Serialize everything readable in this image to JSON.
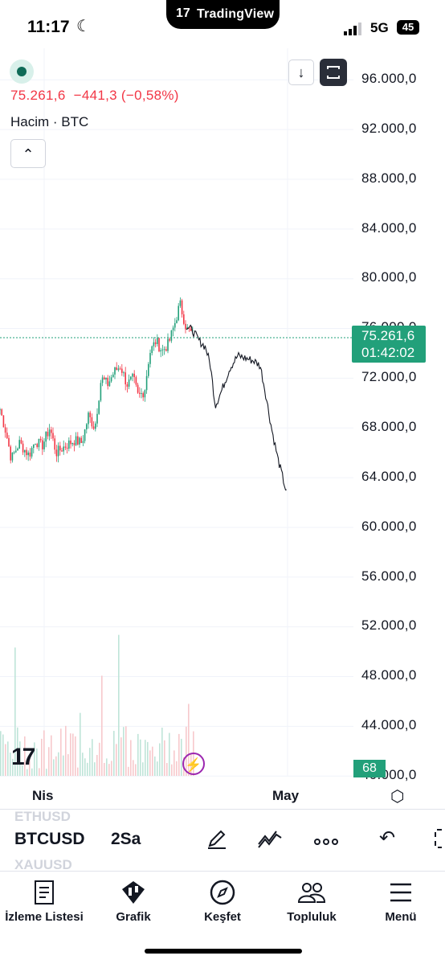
{
  "status": {
    "time": "11:17",
    "network": "5G",
    "battery": "45",
    "brand": "TradingView"
  },
  "legend": {
    "price_line": "75.261,6  −441,3 (−0,58%)",
    "volume_label": "Hacim · BTC"
  },
  "price_axis": [
    "96.000,0",
    "92.000,0",
    "88.000,0",
    "84.000,0",
    "80.000,0",
    "76.000,0",
    "72.000,0",
    "68.000,0",
    "64.000,0",
    "60.000,0",
    "56.000,0",
    "52.000,0",
    "48.000,0",
    "44.000,0",
    "40.000,0"
  ],
  "current": {
    "price": "75.261,6",
    "countdown": "01:42:02"
  },
  "volume_tag": "68",
  "time_axis": {
    "left": "Nis",
    "right": "May"
  },
  "toolbar": {
    "symbol": "BTCUSD",
    "interval": "2Sa",
    "ghost_above": "ETHUSD",
    "ghost_below": "XAUUSD"
  },
  "nav": [
    {
      "label": "İzleme Listesi",
      "icon": "watchlist-icon"
    },
    {
      "label": "Grafik",
      "icon": "chart-icon"
    },
    {
      "label": "Keşfet",
      "icon": "compass-icon"
    },
    {
      "label": "Topluluk",
      "icon": "community-icon"
    },
    {
      "label": "Menü",
      "icon": "menu-icon"
    }
  ],
  "colors": {
    "up": "#22a07a",
    "down": "#f23645",
    "projection": "#131722"
  }
}
